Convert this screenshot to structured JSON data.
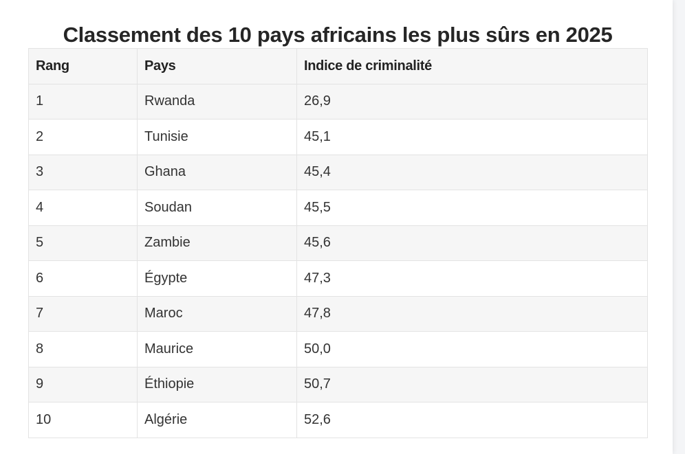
{
  "title": "Classement des 10 pays africains les plus sûrs en 2025",
  "table": {
    "headers": [
      "Rang",
      "Pays",
      "Indice de criminalité"
    ],
    "rows": [
      [
        "1",
        "Rwanda",
        "26,9"
      ],
      [
        "2",
        "Tunisie",
        "45,1"
      ],
      [
        "3",
        "Ghana",
        "45,4"
      ],
      [
        "4",
        "Soudan",
        "45,5"
      ],
      [
        "5",
        "Zambie",
        "45,6"
      ],
      [
        "6",
        "Égypte",
        "47,3"
      ],
      [
        "7",
        "Maroc",
        "47,8"
      ],
      [
        "8",
        "Maurice",
        "50,0"
      ],
      [
        "9",
        "Éthiopie",
        "50,7"
      ],
      [
        "10",
        "Algérie",
        "52,6"
      ]
    ]
  },
  "colors": {
    "row_stripe": "#f6f6f6",
    "border": "#e3e3e3",
    "title_text": "#262626"
  }
}
